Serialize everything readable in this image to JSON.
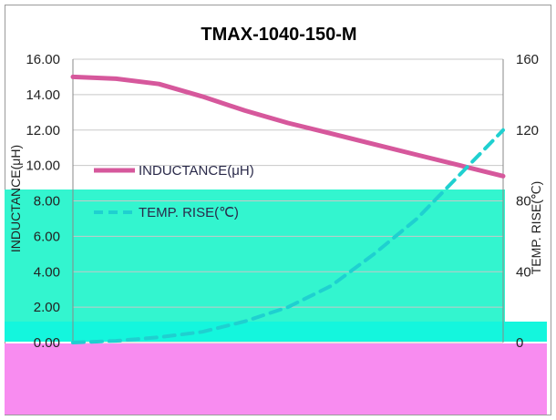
{
  "chart_data": {
    "type": "line",
    "title": "TMAX-1040-150-M",
    "ylabel": "INDUCTANCE(μH)",
    "y2label": "TEMP. RISE(℃)",
    "ylim": [
      0,
      16
    ],
    "y2lim": [
      0,
      160
    ],
    "yticks": [
      "0.00",
      "2.00",
      "4.00",
      "6.00",
      "8.00",
      "10.00",
      "12.00",
      "14.00",
      "16.00"
    ],
    "y2ticks": [
      "0",
      "40",
      "80",
      "120",
      "160"
    ],
    "x": [
      0,
      1,
      2,
      3,
      4,
      5,
      6,
      7,
      8,
      9,
      10
    ],
    "series": [
      {
        "name": "INDUCTANCE(μH)",
        "axis": "left",
        "color": "#d6589c",
        "dash": false,
        "values": [
          15.0,
          14.9,
          14.6,
          13.9,
          13.1,
          12.4,
          11.8,
          11.2,
          10.6,
          10.0,
          9.4
        ]
      },
      {
        "name": "TEMP. RISE(℃)",
        "axis": "right",
        "color": "#1fd0d0",
        "dash": true,
        "values": [
          0,
          1,
          3,
          6,
          12,
          20,
          32,
          50,
          70,
          95,
          120
        ]
      }
    ],
    "legend": "inside-left",
    "grid": true
  },
  "colors": {
    "cyan_band": "#33f5cf",
    "magenta_band": "#f88cf0",
    "teal_strip": "#14f6dd",
    "gridline": "#c8c8c8"
  }
}
